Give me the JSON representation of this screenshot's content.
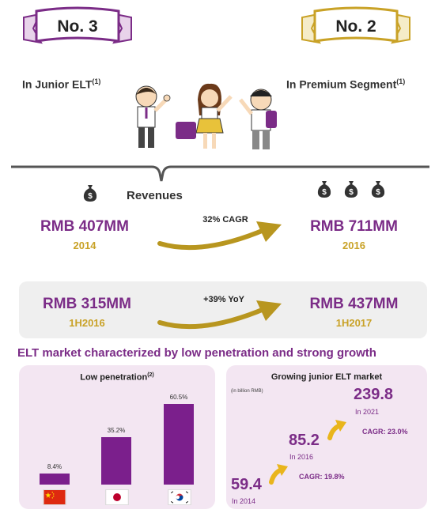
{
  "ranks": {
    "left": {
      "badge": "No. 3",
      "label": "In Junior ELT",
      "note": "(1)"
    },
    "right": {
      "badge": "No. 2",
      "label": "In Premium Segment",
      "note": "(1)"
    }
  },
  "revenues": {
    "title": "Revenues",
    "from": {
      "value": "RMB 407MM",
      "year": "2014"
    },
    "to": {
      "value": "RMB 711MM",
      "year": "2016"
    },
    "cagr": "32% CAGR"
  },
  "halfyear": {
    "from": {
      "value": "RMB 315MM",
      "year": "1H2016"
    },
    "to": {
      "value": "RMB 437MM",
      "year": "1H2017"
    },
    "growth": "+39% YoY"
  },
  "headline": "ELT market characterized by low penetration and strong growth",
  "penetration": {
    "title": "Low penetration",
    "note": "(2)",
    "bars": [
      {
        "value": 8.4,
        "label": "8.4%",
        "country": "China"
      },
      {
        "value": 35.2,
        "label": "35.2%",
        "country": "Japan"
      },
      {
        "value": 60.5,
        "label": "60.5%",
        "country": "Korea"
      }
    ]
  },
  "growth": {
    "title": "Growing junior ELT market",
    "unit": "(in billion RMB)",
    "points": [
      {
        "value": "59.4",
        "year": "In 2014"
      },
      {
        "value": "85.2",
        "year": "In 2016"
      },
      {
        "value": "239.8",
        "year": "In 2021"
      }
    ],
    "cagr1": "CAGR: 19.8%",
    "cagr2": "CAGR: 23.0%"
  },
  "colors": {
    "purple": "#7b2c87",
    "gold": "#c9a227",
    "bar": "#7b1f8c"
  },
  "icons": [
    "money-bag-icon",
    "curved-arrow-icon",
    "china-flag-icon",
    "japan-flag-icon",
    "korea-flag-icon"
  ]
}
